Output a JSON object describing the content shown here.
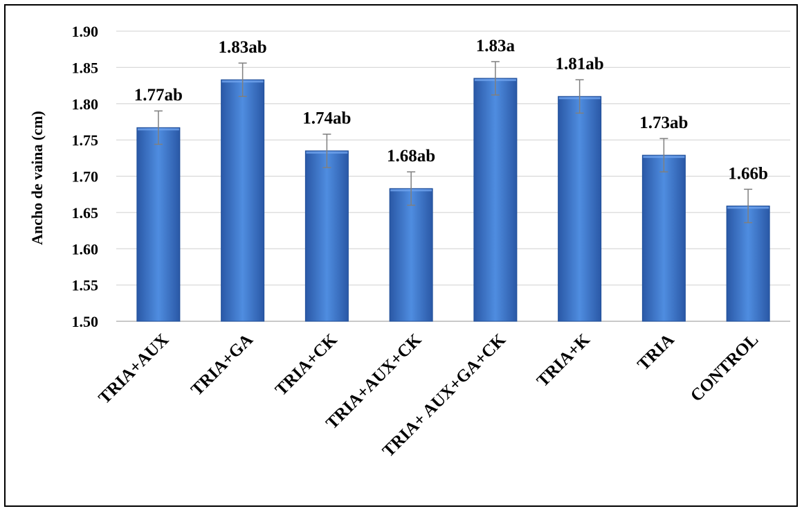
{
  "chart_data": {
    "type": "bar",
    "categories": [
      "TRIA+AUX",
      "TRIA+GA",
      "TRIA+CK",
      "TRIA+AUX+CK",
      "TRIA+ AUX+GA+CK",
      "TRIA+K",
      "TRIA",
      "CONTROL"
    ],
    "values": [
      1.767,
      1.833,
      1.735,
      1.683,
      1.835,
      1.81,
      1.729,
      1.659
    ],
    "errors": [
      0.023,
      0.023,
      0.023,
      0.023,
      0.023,
      0.023,
      0.023,
      0.023
    ],
    "data_labels": [
      "1.77ab",
      "1.83ab",
      "1.74ab",
      "1.68ab",
      "1.83a",
      "1.81ab",
      "1.73ab",
      "1.66b"
    ],
    "ylabel": "Ancho de vaina (cm)",
    "xlabel": "",
    "ylim": [
      1.5,
      1.9
    ],
    "yticks": [
      "1.50",
      "1.55",
      "1.60",
      "1.65",
      "1.70",
      "1.75",
      "1.80",
      "1.85",
      "1.90"
    ],
    "grid": true,
    "bar_color": "#3a6fc4",
    "bar_edge_color": "#1f4e99",
    "error_bar_color": "#7f7f7f",
    "grid_color": "#d9d9d9"
  }
}
